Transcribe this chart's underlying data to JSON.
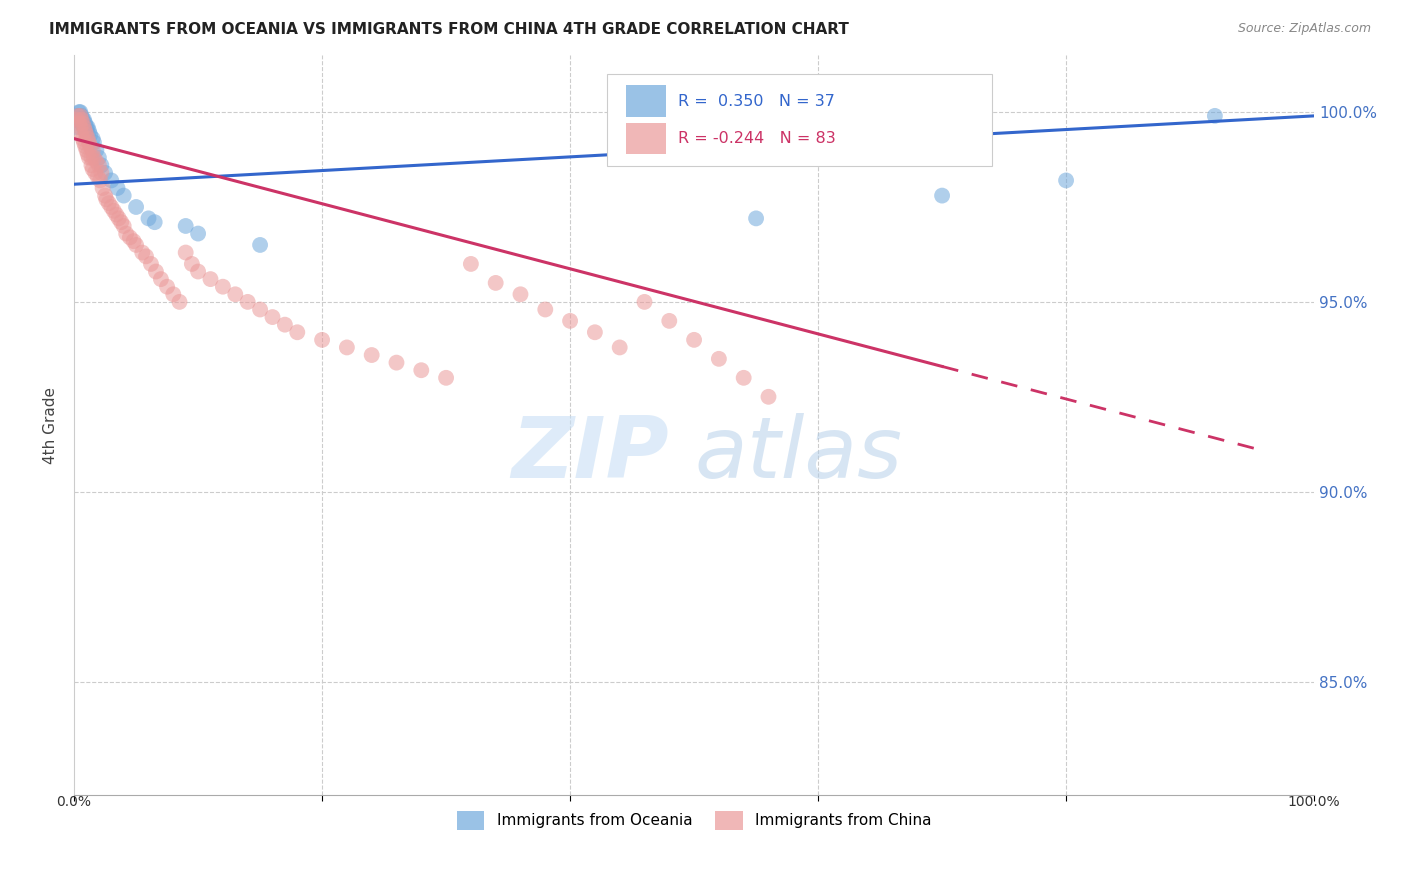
{
  "title": "IMMIGRANTS FROM OCEANIA VS IMMIGRANTS FROM CHINA 4TH GRADE CORRELATION CHART",
  "source": "Source: ZipAtlas.com",
  "ylabel": "4th Grade",
  "ytick_labels": [
    "100.0%",
    "95.0%",
    "90.0%",
    "85.0%"
  ],
  "ytick_values": [
    1.0,
    0.95,
    0.9,
    0.85
  ],
  "xlim": [
    0.0,
    1.0
  ],
  "ylim": [
    0.82,
    1.015
  ],
  "legend_oceania": "Immigrants from Oceania",
  "legend_china": "Immigrants from China",
  "R_oceania": 0.35,
  "N_oceania": 37,
  "R_china": -0.244,
  "N_china": 83,
  "color_oceania": "#6fa8dc",
  "color_china": "#ea9999",
  "line_color_oceania": "#3366cc",
  "line_color_china": "#cc3366",
  "bg_color": "#ffffff",
  "watermark_zip": "ZIP",
  "watermark_atlas": "atlas",
  "oceania_x": [
    0.002,
    0.003,
    0.004,
    0.004,
    0.005,
    0.005,
    0.006,
    0.006,
    0.007,
    0.007,
    0.008,
    0.008,
    0.009,
    0.01,
    0.01,
    0.011,
    0.012,
    0.013,
    0.015,
    0.016,
    0.018,
    0.02,
    0.022,
    0.025,
    0.03,
    0.035,
    0.04,
    0.05,
    0.06,
    0.065,
    0.09,
    0.1,
    0.15,
    0.55,
    0.7,
    0.8,
    0.92
  ],
  "oceania_y": [
    0.996,
    0.999,
    1.0,
    0.999,
    1.0,
    0.998,
    0.999,
    0.997,
    0.998,
    0.997,
    0.996,
    0.998,
    0.997,
    0.995,
    0.996,
    0.996,
    0.995,
    0.994,
    0.993,
    0.992,
    0.99,
    0.988,
    0.986,
    0.984,
    0.982,
    0.98,
    0.978,
    0.975,
    0.972,
    0.971,
    0.97,
    0.968,
    0.965,
    0.972,
    0.978,
    0.982,
    0.999
  ],
  "china_x": [
    0.002,
    0.003,
    0.004,
    0.005,
    0.005,
    0.006,
    0.006,
    0.007,
    0.007,
    0.008,
    0.008,
    0.009,
    0.009,
    0.01,
    0.01,
    0.011,
    0.011,
    0.012,
    0.012,
    0.013,
    0.014,
    0.014,
    0.015,
    0.015,
    0.016,
    0.017,
    0.018,
    0.019,
    0.02,
    0.021,
    0.022,
    0.023,
    0.025,
    0.026,
    0.028,
    0.03,
    0.032,
    0.034,
    0.036,
    0.038,
    0.04,
    0.042,
    0.045,
    0.048,
    0.05,
    0.055,
    0.058,
    0.062,
    0.066,
    0.07,
    0.075,
    0.08,
    0.085,
    0.09,
    0.095,
    0.1,
    0.11,
    0.12,
    0.13,
    0.14,
    0.15,
    0.16,
    0.17,
    0.18,
    0.2,
    0.22,
    0.24,
    0.26,
    0.28,
    0.3,
    0.32,
    0.34,
    0.36,
    0.38,
    0.4,
    0.42,
    0.44,
    0.46,
    0.48,
    0.5,
    0.52,
    0.54,
    0.56
  ],
  "china_y": [
    0.998,
    0.999,
    0.997,
    0.999,
    0.996,
    0.998,
    0.994,
    0.997,
    0.993,
    0.996,
    0.992,
    0.995,
    0.991,
    0.994,
    0.99,
    0.993,
    0.989,
    0.992,
    0.988,
    0.991,
    0.988,
    0.986,
    0.99,
    0.985,
    0.988,
    0.984,
    0.987,
    0.983,
    0.986,
    0.982,
    0.984,
    0.98,
    0.978,
    0.977,
    0.976,
    0.975,
    0.974,
    0.973,
    0.972,
    0.971,
    0.97,
    0.968,
    0.967,
    0.966,
    0.965,
    0.963,
    0.962,
    0.96,
    0.958,
    0.956,
    0.954,
    0.952,
    0.95,
    0.963,
    0.96,
    0.958,
    0.956,
    0.954,
    0.952,
    0.95,
    0.948,
    0.946,
    0.944,
    0.942,
    0.94,
    0.938,
    0.936,
    0.934,
    0.932,
    0.93,
    0.96,
    0.955,
    0.952,
    0.948,
    0.945,
    0.942,
    0.938,
    0.95,
    0.945,
    0.94,
    0.935,
    0.93,
    0.925
  ]
}
